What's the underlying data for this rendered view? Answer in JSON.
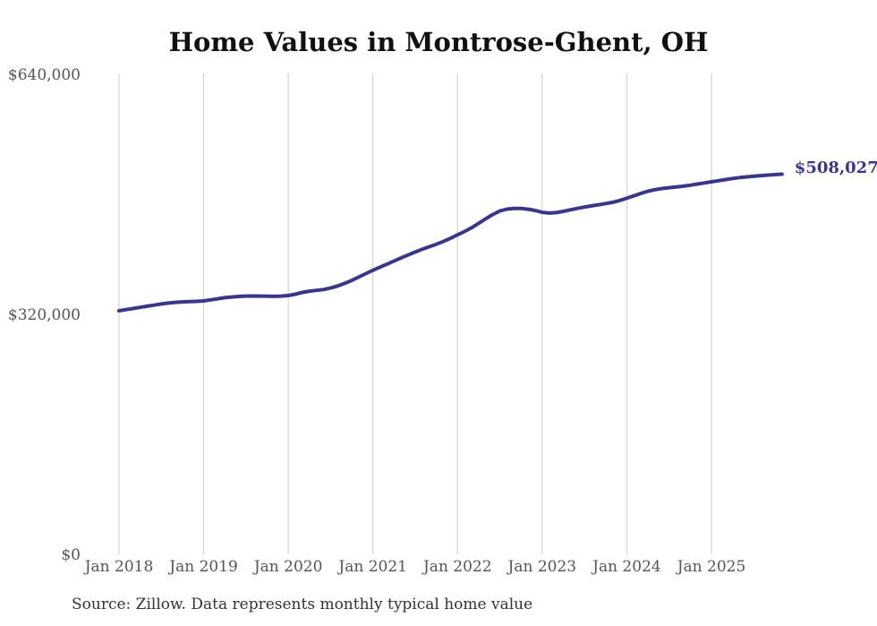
{
  "title": "Home Values in Montrose-Ghent, OH",
  "source_note": "Source: Zillow. Data represents monthly typical home value",
  "colors": {
    "line": "#3a368f",
    "end_label": "#3a368f",
    "gridline": "#cccccc",
    "tick_text": "#555555",
    "title_text": "#111111",
    "source_text": "#333333",
    "background": "#ffffff"
  },
  "chart_data": {
    "type": "line",
    "title": "Home Values in Montrose-Ghent, OH",
    "xlabel": "",
    "ylabel": "",
    "x_start": "2018-01",
    "x_frequency": "monthly",
    "x_ticks": [
      "Jan 2018",
      "Jan 2019",
      "Jan 2020",
      "Jan 2021",
      "Jan 2022",
      "Jan 2023",
      "Jan 2024",
      "Jan 2025"
    ],
    "y_ticks": [
      {
        "label": "$0",
        "value": 0
      },
      {
        "label": "$320,000",
        "value": 320000
      },
      {
        "label": "$640,000",
        "value": 640000
      }
    ],
    "ylim": [
      0,
      640000
    ],
    "grid": "vertical-only",
    "legend": "none",
    "end_label": "$508,027",
    "end_value": 508027,
    "series_name": "Typical home value",
    "values": [
      326000,
      327500,
      329000,
      330500,
      332000,
      333500,
      335000,
      336200,
      337200,
      337800,
      338100,
      338500,
      339100,
      340500,
      342000,
      343400,
      344400,
      345100,
      345500,
      345700,
      345600,
      345300,
      345200,
      345600,
      346300,
      348100,
      350400,
      352100,
      353200,
      354300,
      356300,
      359100,
      362500,
      366500,
      371000,
      375500,
      380000,
      384100,
      388200,
      392300,
      396400,
      400400,
      404300,
      408000,
      411400,
      414700,
      418400,
      422600,
      427200,
      431600,
      436600,
      442600,
      448600,
      454300,
      459000,
      461500,
      462300,
      462300,
      461400,
      459700,
      457200,
      456200,
      456800,
      458500,
      460500,
      462400,
      464200,
      465800,
      467300,
      468900,
      470600,
      472900,
      476000,
      479200,
      482500,
      485400,
      487400,
      488900,
      490000,
      491000,
      492100,
      493400,
      494900,
      496400,
      497900,
      499400,
      500900,
      502300,
      503500,
      504500,
      505400,
      506200,
      506900,
      507500,
      508027
    ]
  }
}
